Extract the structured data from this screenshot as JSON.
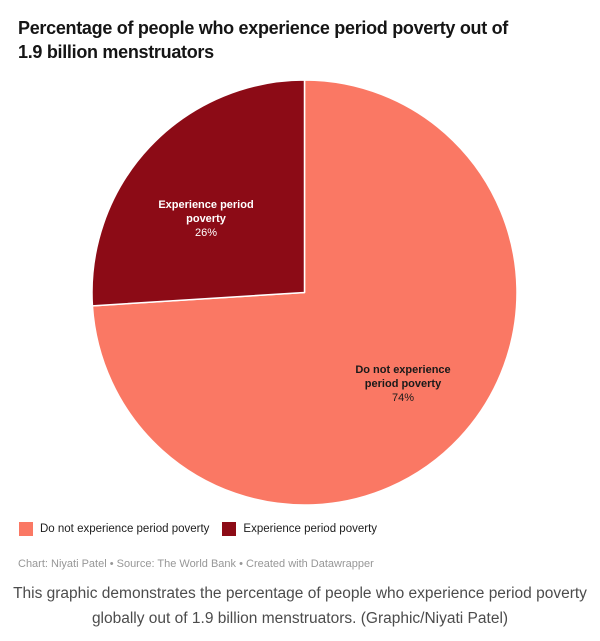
{
  "header": {
    "title": "Percentage of people who experience period poverty out of 1.9 billion menstruators",
    "title_lines": [
      "Percentage of people who experience period poverty out of",
      "1.9 billion menstruators"
    ]
  },
  "chart_data": {
    "type": "pie",
    "title": "Percentage of people who experience period poverty out of 1.9 billion menstruators",
    "unit": "%",
    "slices": [
      {
        "label": "Do not experience period poverty",
        "value": 74,
        "value_label": "74%",
        "color": "#fa7864",
        "label_color": "#1a1a1a"
      },
      {
        "label": "Experience period poverty",
        "value": 26,
        "value_label": "26%",
        "color": "#8c0b16",
        "label_color": "#ffffff"
      }
    ],
    "start_angle_deg": 0,
    "direction": "clockwise",
    "legend_position": "bottom",
    "grid": "off"
  },
  "footer": {
    "source_line": "Chart: Niyati Patel • Source: The World Bank • Created with Datawrapper",
    "caption": "This graphic demonstrates the percentage of people who experience period poverty globally out of 1.9 billion menstruators. (Graphic/Niyati Patel)"
  }
}
